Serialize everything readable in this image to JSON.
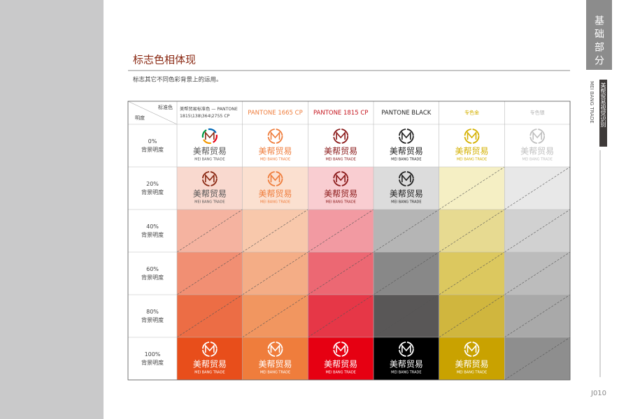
{
  "header": {
    "title": "标志色相体现",
    "subtitle": "标志其它不同色彩背景上的运用。"
  },
  "sidebar": {
    "section": "基础部分",
    "brand": "美帮贸易视觉识别",
    "brand_en": "MEI BANG TRADE"
  },
  "table": {
    "corner": {
      "top": "标准色",
      "bottom": "明度"
    },
    "columns": [
      "美帮贸易标准色 — PANTONE 1815\\138\\364\\2755 CP",
      "PANTONE 1665 CP",
      "PANTONE 1815 CP",
      "PANTONE BLACK",
      "专色金",
      "专色银"
    ],
    "rows": [
      {
        "percent": "0%",
        "label": "背景明度"
      },
      {
        "percent": "20%",
        "label": "背景明度"
      },
      {
        "percent": "40%",
        "label": "背景明度"
      },
      {
        "percent": "60%",
        "label": "背景明度"
      },
      {
        "percent": "80%",
        "label": "背景明度"
      },
      {
        "percent": "100%",
        "label": "背景明度"
      }
    ]
  },
  "logo": {
    "name": "美帮贸易",
    "subtitle": "MEI BANG TRADE"
  },
  "page_number": "J010"
}
